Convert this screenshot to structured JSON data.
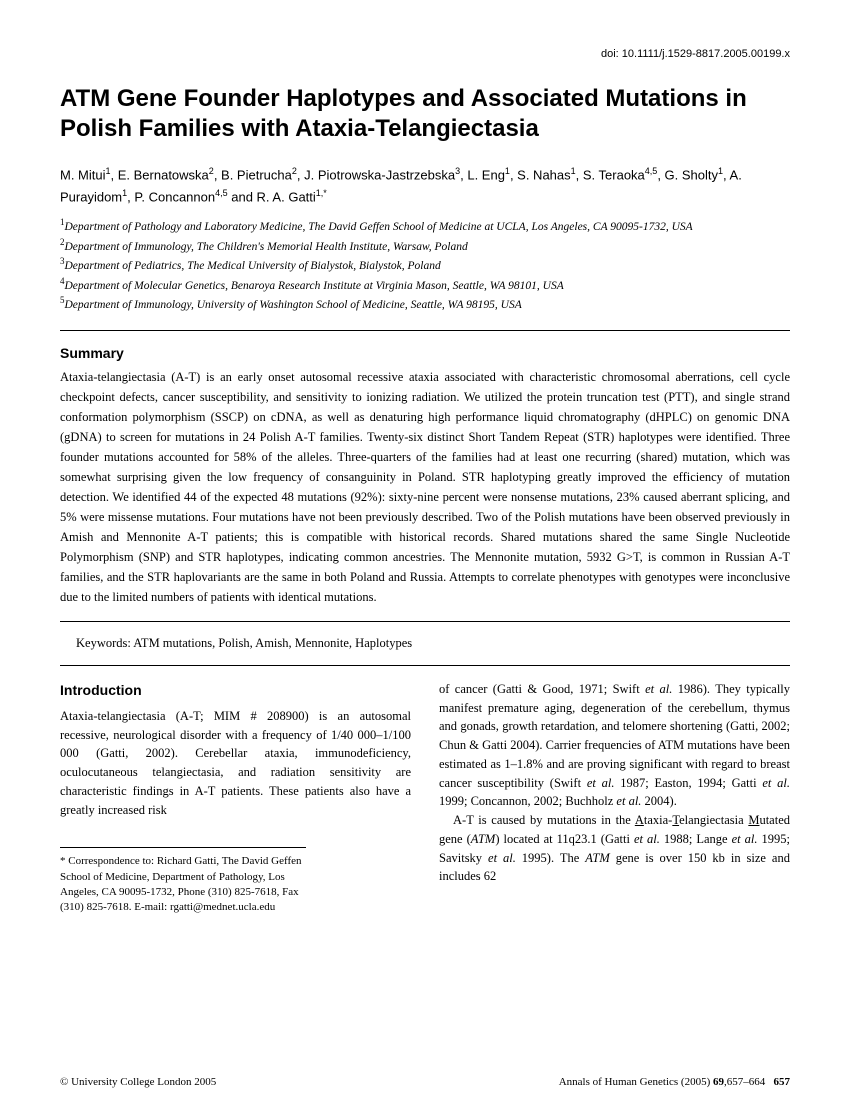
{
  "doi": "doi: 10.1111/j.1529-8817.2005.00199.x",
  "title": "ATM Gene Founder Haplotypes and Associated Mutations in Polish Families with Ataxia-Telangiectasia",
  "authors_html": "M. Mitui<sup>1</sup>, E. Bernatowska<sup>2</sup>, B. Pietrucha<sup>2</sup>, J. Piotrowska-Jastrzebska<sup>3</sup>, L. Eng<sup>1</sup>, S. Nahas<sup>1</sup>, S. Teraoka<sup>4,5</sup>, G. Sholty<sup>1</sup>, A. Purayidom<sup>1</sup>, P. Concannon<sup>4,5</sup> and R. A. Gatti<sup>1,*</sup>",
  "affiliations_html": "<sup>1</sup>Department of Pathology and Laboratory Medicine, The David Geffen School of Medicine at UCLA, Los Angeles, CA 90095-1732, USA<br><sup>2</sup>Department of Immunology, The Children's Memorial Health Institute, Warsaw, Poland<br><sup>3</sup>Department of Pediatrics, The Medical University of Bialystok, Bialystok, Poland<br><sup>4</sup>Department of Molecular Genetics, Benaroya Research Institute at Virginia Mason, Seattle, WA 98101, USA<br><sup>5</sup>Department of Immunology, University of Washington School of Medicine, Seattle, WA 98195, USA",
  "summary_heading": "Summary",
  "summary_text": "Ataxia-telangiectasia (A-T) is an early onset autosomal recessive ataxia associated with characteristic chromosomal aberrations, cell cycle checkpoint defects, cancer susceptibility, and sensitivity to ionizing radiation. We utilized the protein truncation test (PTT), and single strand conformation polymorphism (SSCP) on cDNA, as well as denaturing high performance liquid chromatography (dHPLC) on genomic DNA (gDNA) to screen for mutations in 24 Polish A-T families. Twenty-six distinct Short Tandem Repeat (STR) haplotypes were identified. Three founder mutations accounted for 58% of the alleles. Three-quarters of the families had at least one recurring (shared) mutation, which was somewhat surprising given the low frequency of consanguinity in Poland. STR haplotyping greatly improved the efficiency of mutation detection. We identified 44 of the expected 48 mutations (92%): sixty-nine percent were nonsense mutations, 23% caused aberrant splicing, and 5% were missense mutations. Four mutations have not been previously described. Two of the Polish mutations have been observed previously in Amish and Mennonite A-T patients; this is compatible with historical records. Shared mutations shared the same Single Nucleotide Polymorphism (SNP) and STR haplotypes, indicating common ancestries. The Mennonite mutation, 5932 G>T, is common in Russian A-T families, and the STR haplovariants are the same in both Poland and Russia. Attempts to correlate phenotypes with genotypes were inconclusive due to the limited numbers of patients with identical mutations.",
  "keywords": "Keywords: ATM mutations, Polish, Amish, Mennonite, Haplotypes",
  "intro_heading": "Introduction",
  "intro_col1_p1_html": "Ataxia-telangiectasia (A-T; MIM # 208900) is an autosomal recessive, neurological disorder with a frequency of 1/40 000–1/100 000 (Gatti, 2002). Cerebellar ataxia, immunodeficiency, oculocutaneous telangiectasia, and radiation sensitivity are characteristic findings in A-T patients. These patients also have a greatly increased risk",
  "intro_col2_p1_html": "of cancer (Gatti &amp; Good, 1971; Swift <span class=\"italic\">et al.</span> 1986). They typically manifest premature aging, degeneration of the cerebellum, thymus and gonads, growth retardation, and telomere shortening (Gatti, 2002; Chun &amp; Gatti 2004). Carrier frequencies of ATM mutations have been estimated as 1–1.8% and are proving significant with regard to breast cancer susceptibility (Swift <span class=\"italic\">et al.</span> 1987; Easton, 1994; Gatti <span class=\"italic\">et al.</span> 1999; Concannon, 2002; Buchholz <span class=\"italic\">et al.</span> 2004).",
  "intro_col2_p2_html": "A-T is caused by mutations in the <span class=\"underline\">A</span>taxia-<span class=\"underline\">T</span>elangiectasia <span class=\"underline\">M</span>utated gene (<span class=\"italic\">ATM</span>) located at 11q23.1 (Gatti <span class=\"italic\">et al.</span> 1988; Lange <span class=\"italic\">et al.</span> 1995; Savitsky <span class=\"italic\">et al.</span> 1995). The <span class=\"italic\">ATM</span> gene is over 150 kb in size and includes 62",
  "correspondence": "* Correspondence to: Richard Gatti, The David Geffen School of Medicine, Department of Pathology, Los Angeles, CA 90095-1732, Phone (310) 825-7618, Fax (310) 825-7618. E-mail: rgatti@mednet.ucla.edu",
  "footer_left": "© University College London 2005",
  "footer_right_html": "Annals of Human Genetics (2005) <b>69</b>,657–664",
  "page_number": "657"
}
